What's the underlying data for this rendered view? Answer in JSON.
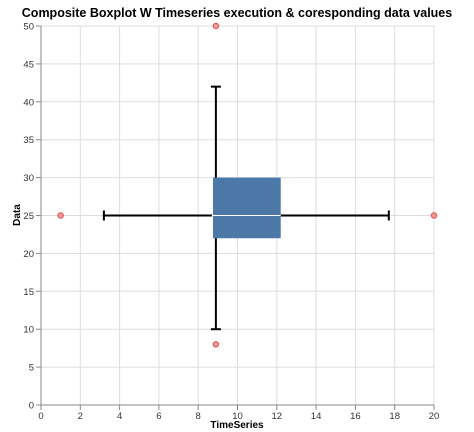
{
  "chart_data": {
    "type": "boxplot",
    "title": "Composite Boxplot W Timeseries execution & coresponding data values",
    "xlabel": "TimeSeries",
    "ylabel": "Data",
    "xlim": [
      0,
      20
    ],
    "ylim": [
      0,
      50
    ],
    "x_ticks": [
      0,
      2,
      4,
      6,
      8,
      10,
      12,
      14,
      16,
      18,
      20
    ],
    "y_ticks": [
      0,
      5,
      10,
      15,
      20,
      25,
      30,
      35,
      40,
      45,
      50
    ],
    "grid": true,
    "x_box": {
      "min": 3.2,
      "q1": 8.7,
      "median": 8.7,
      "q3": 12.2,
      "max": 17.7,
      "y": 25
    },
    "y_box": {
      "min": 10,
      "q1": 22,
      "median": 25,
      "q3": 30,
      "max": 42,
      "x": 8.9
    },
    "outliers": [
      {
        "x": 8.9,
        "y": 50
      },
      {
        "x": 8.9,
        "y": 8
      },
      {
        "x": 1,
        "y": 25
      },
      {
        "x": 20,
        "y": 25
      }
    ],
    "colors": {
      "box": "#4c78a8",
      "whisker": "#000000",
      "outlier": "#e45756",
      "median": "#ffffff"
    }
  }
}
